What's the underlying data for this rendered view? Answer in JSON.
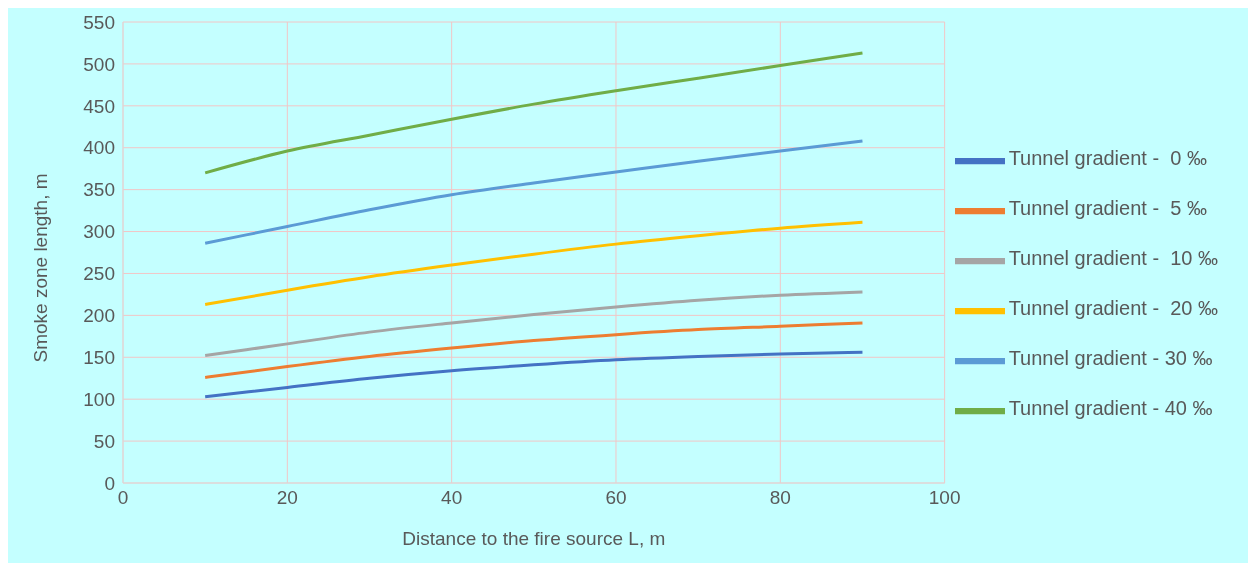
{
  "chart_data": {
    "type": "line",
    "xlabel": "Distance to the fire source L, m",
    "ylabel": "Smoke zone length, m",
    "x": [
      10,
      20,
      30,
      40,
      50,
      60,
      70,
      80,
      90
    ],
    "series": [
      {
        "name": "Tunnel gradient -  0 ‰",
        "color": "#4472c4",
        "values": [
          103,
          114,
          125,
          134,
          141,
          147,
          151,
          154,
          156
        ]
      },
      {
        "name": "Tunnel gradient -  5 ‰",
        "color": "#ed7d31",
        "values": [
          126,
          139,
          151,
          161,
          170,
          177,
          183,
          187,
          191
        ]
      },
      {
        "name": "Tunnel gradient -  10 ‰",
        "color": "#a5a5a5",
        "values": [
          152,
          166,
          180,
          191,
          201,
          210,
          218,
          224,
          228
        ]
      },
      {
        "name": "Tunnel gradient -  20 ‰",
        "color": "#ffc000",
        "values": [
          213,
          230,
          246,
          260,
          273,
          285,
          295,
          304,
          311
        ]
      },
      {
        "name": "Tunnel gradient - 30 ‰",
        "color": "#5b9bd5",
        "values": [
          286,
          306,
          326,
          344,
          358,
          371,
          384,
          396,
          408
        ]
      },
      {
        "name": "Tunnel gradient - 40 ‰",
        "color": "#70ad47",
        "values": [
          370,
          396,
          415,
          434,
          452,
          468,
          483,
          498,
          513
        ]
      }
    ],
    "xlim": [
      0,
      100
    ],
    "xticks": [
      0,
      20,
      40,
      60,
      80,
      100
    ],
    "ylim": [
      0,
      550
    ],
    "yticks": [
      0,
      50,
      100,
      150,
      200,
      250,
      300,
      350,
      400,
      450,
      500,
      550
    ],
    "grid": true,
    "legend": "right",
    "marker": "none",
    "line_style": "solid"
  }
}
